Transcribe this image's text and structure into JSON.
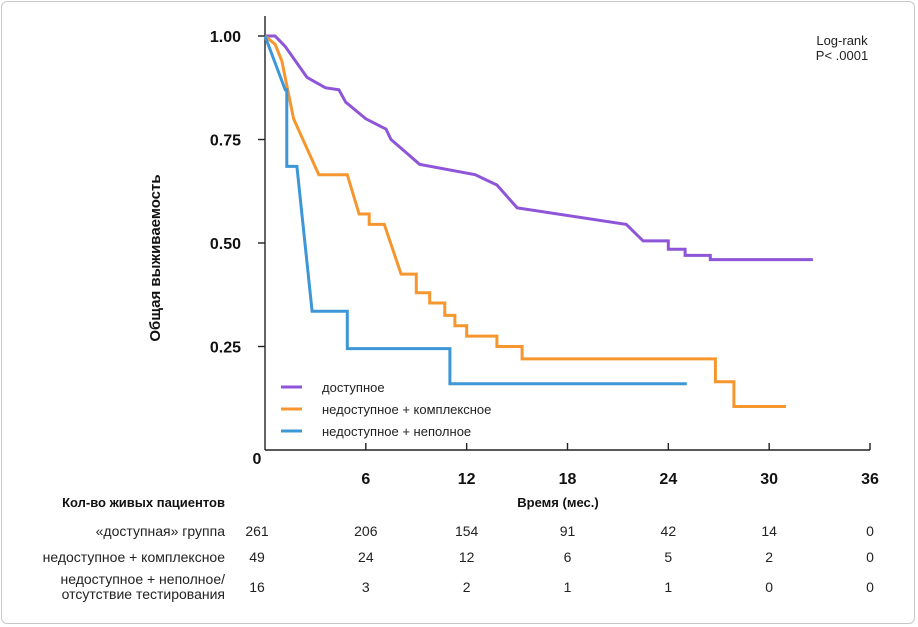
{
  "chart_data": {
    "type": "line",
    "subtype": "kaplan-meier",
    "ylabel": "Общая выживаемость",
    "xlabel": "Время (мес.)",
    "xlim": [
      0,
      36
    ],
    "ylim": [
      0,
      1.0
    ],
    "x_ticks": [
      0,
      6,
      12,
      18,
      24,
      30,
      36
    ],
    "x_tick_labels": [
      "0",
      "6",
      "12",
      "18",
      "24",
      "30",
      "36"
    ],
    "y_ticks": [
      1.0,
      0.75,
      0.5,
      0.25
    ],
    "y_tick_labels": [
      "1.00",
      "0.75",
      "0.50",
      "0.25"
    ],
    "annotation": [
      "Log-rank",
      "P< .0001"
    ],
    "legend_position": "bottom-left",
    "series": [
      {
        "name": "доступное",
        "color": "#8f55d8",
        "points": [
          [
            0,
            1.0
          ],
          [
            0.6,
            1.0
          ],
          [
            1.2,
            0.975
          ],
          [
            2.5,
            0.9
          ],
          [
            3.6,
            0.875
          ],
          [
            4.4,
            0.87
          ],
          [
            4.8,
            0.84
          ],
          [
            6.0,
            0.8
          ],
          [
            7.2,
            0.775
          ],
          [
            7.5,
            0.75
          ],
          [
            9.2,
            0.69
          ],
          [
            12.5,
            0.665
          ],
          [
            13.8,
            0.64
          ],
          [
            15.0,
            0.585
          ],
          [
            21.5,
            0.545
          ],
          [
            22.5,
            0.505
          ],
          [
            24.0,
            0.505
          ],
          [
            24.0,
            0.485
          ],
          [
            25.0,
            0.485
          ],
          [
            25.0,
            0.47
          ],
          [
            26.5,
            0.47
          ],
          [
            26.5,
            0.46
          ],
          [
            32.6,
            0.46
          ]
        ]
      },
      {
        "name": "недоступное + комплексное",
        "color": "#f5962f",
        "points": [
          [
            0,
            1.0
          ],
          [
            0.6,
            0.98
          ],
          [
            1.0,
            0.94
          ],
          [
            1.7,
            0.8
          ],
          [
            3.2,
            0.665
          ],
          [
            4.9,
            0.665
          ],
          [
            5.6,
            0.57
          ],
          [
            6.2,
            0.57
          ],
          [
            6.2,
            0.545
          ],
          [
            7.1,
            0.545
          ],
          [
            8.1,
            0.425
          ],
          [
            9.0,
            0.425
          ],
          [
            9.0,
            0.38
          ],
          [
            9.8,
            0.38
          ],
          [
            9.8,
            0.355
          ],
          [
            10.7,
            0.355
          ],
          [
            10.7,
            0.325
          ],
          [
            11.3,
            0.325
          ],
          [
            11.3,
            0.3
          ],
          [
            12.0,
            0.3
          ],
          [
            12.0,
            0.275
          ],
          [
            13.8,
            0.275
          ],
          [
            13.8,
            0.25
          ],
          [
            15.3,
            0.25
          ],
          [
            15.3,
            0.22
          ],
          [
            26.8,
            0.22
          ],
          [
            26.8,
            0.165
          ],
          [
            27.9,
            0.165
          ],
          [
            27.9,
            0.105
          ],
          [
            31.0,
            0.105
          ]
        ]
      },
      {
        "name": "недоступное + неполное",
        "color": "#3d97d6",
        "points": [
          [
            0,
            1.0
          ],
          [
            1.2,
            0.87
          ],
          [
            1.3,
            0.87
          ],
          [
            1.3,
            0.685
          ],
          [
            1.9,
            0.685
          ],
          [
            2.8,
            0.335
          ],
          [
            4.9,
            0.335
          ],
          [
            4.9,
            0.245
          ],
          [
            11.0,
            0.245
          ],
          [
            11.0,
            0.16
          ],
          [
            25.1,
            0.16
          ]
        ]
      }
    ],
    "risk_table": {
      "title": "Кол-во живых пациентов",
      "times": [
        0,
        6,
        12,
        18,
        24,
        30,
        36
      ],
      "rows": [
        {
          "label": [
            "«доступная» группа"
          ],
          "counts": [
            261,
            206,
            154,
            91,
            42,
            14,
            0
          ]
        },
        {
          "label": [
            "недоступное + комплексное"
          ],
          "counts": [
            49,
            24,
            12,
            6,
            5,
            2,
            0
          ]
        },
        {
          "label": [
            "недоступное + неполное/",
            "отсутствие тестирования"
          ],
          "counts": [
            16,
            3,
            2,
            1,
            1,
            0,
            0
          ]
        }
      ]
    }
  }
}
